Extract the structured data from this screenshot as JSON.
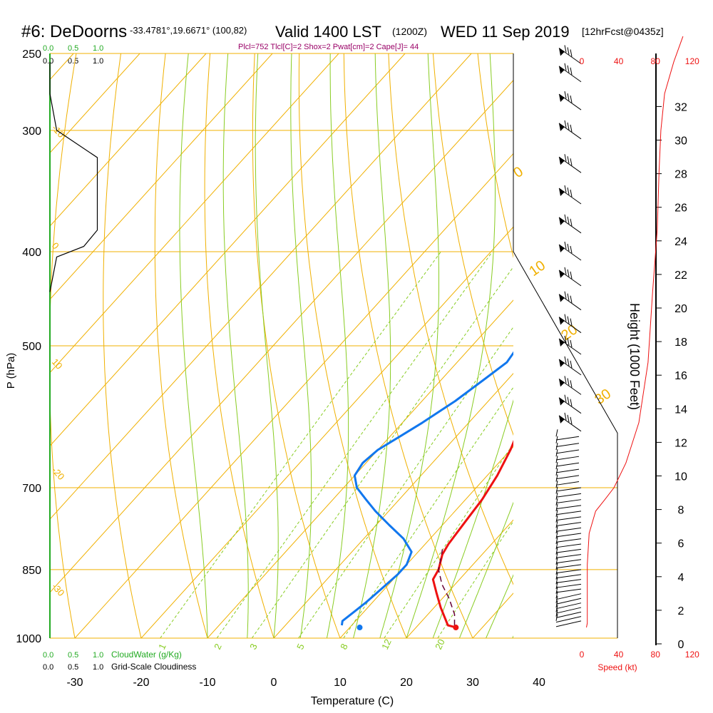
{
  "header": {
    "station": "#6: DeDoorns",
    "coords": "-33.4781°,19.6671° (100,82)",
    "valid_a": "Valid 1400 LST",
    "valid_b": "(1200Z)",
    "valid_c": "WED 11 Sep 2019",
    "forecast": "[12hrFcst@0435z]"
  },
  "indices": "Plcl=752 Tlcl[C]=2 Shox=2 Pwat[cm]=2 Cape[J]= 44",
  "labels": {
    "top_cloud_green": [
      "0.0",
      "0.5",
      "1.0"
    ],
    "top_cloud_black": [
      "0.0",
      "0.5",
      "1.0"
    ],
    "bottom_cloud_green": [
      "0.0",
      "0.5",
      "1.0"
    ],
    "bottom_cloud_black": [
      "0.0",
      "0.5",
      "1.0"
    ],
    "cloudwater": "CloudWater (g/Kg)",
    "cloudiness": "Grid-Scale Cloudiness",
    "speed_ticks": [
      "0",
      "40",
      "80",
      "120"
    ],
    "speed_label": "Speed (kt)",
    "height_label": "Height (1000 Feet)"
  },
  "colors": {
    "isotherm": "#f0b000",
    "dry_adiabat": "#f0b000",
    "moist_adiabat": "#88cc22",
    "mixing_ratio": "#88cc22",
    "temperature": "#ee1111",
    "dewpoint": "#1177ee",
    "parcel": "#660033",
    "cloud_axis": "#22aa22",
    "speed": "#ee1111",
    "indices": "#990066"
  },
  "chart_data": {
    "type": "line",
    "title": "Skew-T log-P sounding, DeDoorns, Valid 1400 LST WED 11 Sep 2019",
    "xlabel": "Temperature (C)",
    "ylabel": "P (hPa)",
    "xlim": [
      -35,
      35
    ],
    "ylim_hpa": [
      1000,
      250
    ],
    "x_ticks": [
      "-30",
      "-20",
      "-10",
      "0",
      "10",
      "20",
      "30",
      "40"
    ],
    "pressure_ticks": [
      "250",
      "300",
      "400",
      "500",
      "700",
      "850",
      "1000"
    ],
    "height_ticks_kft": [
      "0",
      "2",
      "4",
      "6",
      "8",
      "10",
      "12",
      "14",
      "16",
      "18",
      "20",
      "22",
      "24",
      "26",
      "28",
      "30",
      "32"
    ],
    "isotherm_labels": [
      "-10",
      "-20",
      "-30",
      "0",
      "10",
      "20",
      "30"
    ],
    "dry_adiabat_labels": [
      "0",
      "10",
      "20",
      "30"
    ],
    "mixing_ratio_labels": [
      "1",
      "2",
      "3",
      "5",
      "8",
      "12",
      "20"
    ],
    "series": [
      {
        "name": "Temperature",
        "points": [
          [
            26.0,
            975
          ],
          [
            24.5,
            970
          ],
          [
            21.0,
            930
          ],
          [
            18.5,
            900
          ],
          [
            16.0,
            870
          ],
          [
            15.5,
            850
          ],
          [
            14.0,
            820
          ],
          [
            13.5,
            800
          ],
          [
            13.0,
            760
          ],
          [
            12.5,
            720
          ],
          [
            11.5,
            680
          ],
          [
            10.0,
            640
          ],
          [
            9.0,
            620
          ],
          [
            8.0,
            600
          ],
          [
            6.0,
            570
          ],
          [
            4.0,
            540
          ],
          [
            2.0,
            515
          ],
          [
            0.0,
            492
          ],
          [
            -2.0,
            470
          ],
          [
            -4.0,
            448
          ],
          [
            -6.0,
            425
          ],
          [
            -8.0,
            405
          ],
          [
            -10.0,
            385
          ],
          [
            -12.0,
            365
          ],
          [
            -15.0,
            340
          ],
          [
            -18.5,
            318
          ],
          [
            -22.0,
            302
          ],
          [
            -25.0,
            288
          ],
          [
            -27.5,
            277
          ],
          [
            -29.0,
            268
          ],
          [
            -29.5,
            261
          ],
          [
            -29.0,
            255
          ],
          [
            -28.5,
            251
          ]
        ]
      },
      {
        "name": "Dewpoint",
        "points": [
          [
            8.5,
            970
          ],
          [
            8.0,
            960
          ],
          [
            8.5,
            940
          ],
          [
            9.0,
            920
          ],
          [
            9.5,
            890
          ],
          [
            10.0,
            860
          ],
          [
            10.0,
            840
          ],
          [
            9.0,
            815
          ],
          [
            6.0,
            790
          ],
          [
            2.0,
            765
          ],
          [
            -2.0,
            740
          ],
          [
            -5.0,
            720
          ],
          [
            -8.0,
            700
          ],
          [
            -10.0,
            680
          ],
          [
            -10.5,
            660
          ],
          [
            -10.0,
            640
          ],
          [
            -8.5,
            620
          ],
          [
            -7.0,
            600
          ],
          [
            -5.0,
            570
          ],
          [
            -3.5,
            540
          ],
          [
            -2.5,
            520
          ],
          [
            -3.0,
            500
          ],
          [
            -4.0,
            480
          ],
          [
            -5.5,
            460
          ],
          [
            -8.0,
            440
          ],
          [
            -11.0,
            420
          ],
          [
            -14.0,
            400
          ],
          [
            -16.5,
            380
          ],
          [
            -19.0,
            360
          ],
          [
            -22.0,
            340
          ],
          [
            -25.0,
            320
          ],
          [
            -28.0,
            303
          ],
          [
            -31.0,
            288
          ],
          [
            -33.0,
            275
          ],
          [
            -34.5,
            265
          ],
          [
            -36.0,
            252
          ]
        ]
      },
      {
        "name": "Parcel",
        "points": [
          [
            25.5,
            970
          ],
          [
            24.0,
            945
          ],
          [
            21.0,
            910
          ],
          [
            18.0,
            880
          ],
          [
            15.5,
            850
          ],
          [
            14.0,
            822
          ],
          [
            13.3,
            810
          ]
        ]
      }
    ],
    "surface_temperature_marker": 26.0,
    "surface_dewpoint_marker": 11.5,
    "wind_levels_hpa": [
      960,
      950,
      940,
      930,
      920,
      910,
      900,
      890,
      880,
      870,
      860,
      850,
      840,
      830,
      820,
      810,
      800,
      790,
      780,
      770,
      760,
      750,
      740,
      730,
      720,
      710,
      700,
      690,
      680,
      670,
      660,
      650,
      640,
      630,
      620,
      600,
      575,
      550,
      525,
      500,
      475,
      450,
      425,
      400,
      375,
      350,
      325,
      300,
      280,
      262,
      251
    ],
    "cloud_water_profile": [
      [
        0.0,
        255
      ],
      [
        0.0,
        275
      ],
      [
        0.05,
        300
      ],
      [
        0.35,
        320
      ],
      [
        0.35,
        380
      ],
      [
        0.25,
        395
      ],
      [
        0.05,
        405
      ],
      [
        0.0,
        440
      ]
    ],
    "speed_profile": [
      [
        5,
        975
      ],
      [
        6,
        965
      ],
      [
        6,
        900
      ],
      [
        6,
        840
      ],
      [
        8,
        780
      ],
      [
        15,
        740
      ],
      [
        25,
        720
      ],
      [
        35,
        700
      ],
      [
        48,
        660
      ],
      [
        62,
        600
      ],
      [
        72,
        520
      ],
      [
        77,
        440
      ],
      [
        82,
        380
      ],
      [
        84,
        330
      ],
      [
        86,
        300
      ],
      [
        90,
        275
      ],
      [
        100,
        255
      ],
      [
        110,
        240
      ]
    ]
  }
}
